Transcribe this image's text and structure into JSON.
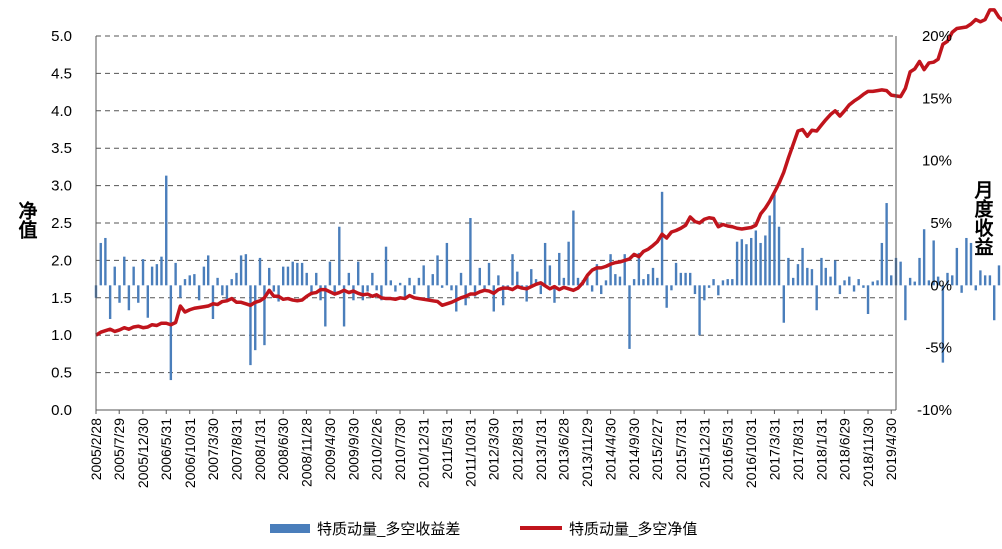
{
  "chart_data": {
    "type": "bar+line",
    "title": "",
    "ylabel_left": "净值",
    "ylabel_right": "月度收益",
    "ylim_left": [
      0.0,
      5.0
    ],
    "yticks_left": [
      "0.0",
      "0.5",
      "1.0",
      "1.5",
      "2.0",
      "2.5",
      "3.0",
      "3.5",
      "4.0",
      "4.5",
      "5.0"
    ],
    "ylim_right": [
      -10,
      20
    ],
    "yticks_right": [
      "-10%",
      "-5%",
      "0%",
      "5%",
      "10%",
      "15%",
      "20%"
    ],
    "xlim": [
      "2005/2/28",
      "2019/5/31"
    ],
    "x_tick_labels": [
      "2005/2/28",
      "2005/7/29",
      "2005/12/30",
      "2006/5/31",
      "2006/10/31",
      "2007/3/30",
      "2007/8/31",
      "2008/1/31",
      "2008/6/30",
      "2008/11/28",
      "2009/4/30",
      "2009/9/30",
      "2010/2/26",
      "2010/7/30",
      "2010/12/31",
      "2011/5/31",
      "2011/10/31",
      "2012/3/30",
      "2012/8/31",
      "2013/1/31",
      "2013/6/28",
      "2013/11/29",
      "2014/4/30",
      "2014/9/30",
      "2015/2/27",
      "2015/7/31",
      "2015/12/31",
      "2016/5/31",
      "2016/10/31",
      "2017/3/31",
      "2017/8/31",
      "2018/1/31",
      "2018/6/29",
      "2018/11/30",
      "2019/4/30"
    ],
    "grid": true,
    "legend_position": "bottom",
    "series": [
      {
        "name": "特质动量_多空收益差",
        "kind": "bar",
        "axis": "right",
        "color": "#4a7ebb",
        "values": [
          -1.0,
          3.4,
          3.8,
          -2.7,
          1.5,
          -1.4,
          2.3,
          -2.0,
          1.5,
          -1.4,
          2.1,
          -2.6,
          1.5,
          1.7,
          2.3,
          8.8,
          -7.6,
          1.8,
          -1.0,
          0.5,
          0.8,
          0.9,
          -1.2,
          1.5,
          2.4,
          -2.7,
          0.6,
          -0.8,
          -1.2,
          0.5,
          1.0,
          2.4,
          2.5,
          -6.4,
          -5.2,
          2.2,
          -4.8,
          1.4,
          -0.5,
          -1.3,
          1.5,
          1.5,
          1.9,
          1.8,
          1.8,
          1.0,
          -0.8,
          1.0,
          -1.2,
          -3.3,
          1.9,
          -0.7,
          4.7,
          -3.3,
          1.0,
          -1.2,
          1.9,
          -1.2,
          -0.5,
          1.0,
          -0.4,
          -1.2,
          3.1,
          0.4,
          -0.5,
          0.2,
          -1.1,
          0.6,
          -0.7,
          0.6,
          1.6,
          -1.2,
          0.9,
          2.4,
          -0.2,
          3.4,
          -0.4,
          -2.1,
          1.0,
          -1.6,
          5.4,
          -0.9,
          1.4,
          -0.5,
          1.8,
          -2.1,
          0.8,
          -1.6,
          -0.2,
          2.5,
          1.1,
          -0.3,
          -1.3,
          1.3,
          0.5,
          -0.7,
          3.4,
          1.6,
          -1.4,
          2.6,
          0.6,
          3.5,
          6.0,
          0.6,
          0.4,
          0.8,
          -0.5,
          1.7,
          -0.7,
          0.4,
          2.5,
          0.9,
          0.7,
          2.5,
          -5.1,
          0.5,
          2.6,
          0.5,
          0.9,
          1.4,
          0.6,
          7.5,
          -1.8,
          -0.4,
          1.8,
          1.0,
          1.0,
          1.0,
          -0.7,
          -4.0,
          -1.2,
          -0.2,
          0.5,
          -0.8,
          0.4,
          0.5,
          0.5,
          3.5,
          3.7,
          3.3,
          3.8,
          4.4,
          3.4,
          4.0,
          5.6,
          7.3,
          4.7,
          -3.0,
          2.2,
          0.6,
          1.7,
          3.0,
          1.4,
          1.3,
          -2.0,
          2.2,
          1.4,
          0.7,
          2.0,
          -0.7,
          0.4,
          0.7,
          -0.5,
          0.5,
          -0.2,
          -2.3,
          0.3,
          0.4,
          3.4,
          6.6,
          0.8,
          2.2,
          1.9,
          -2.8,
          0.6,
          0.3,
          2.2,
          4.5,
          0.4,
          3.6,
          0.7,
          -6.2,
          1.0,
          0.8,
          3.0,
          -0.6,
          3.8,
          3.4,
          -0.4,
          1.2,
          0.8,
          0.8,
          -2.8,
          1.6,
          1.1,
          -7.1,
          1.3,
          1.2
        ]
      },
      {
        "name": "特质动量_多空净值",
        "kind": "line",
        "axis": "left",
        "color": "#c0141c",
        "values": [
          1.0,
          1.04,
          1.06,
          1.08,
          1.05,
          1.07,
          1.1,
          1.08,
          1.11,
          1.12,
          1.1,
          1.11,
          1.14,
          1.13,
          1.16,
          1.16,
          1.14,
          1.17,
          1.39,
          1.31,
          1.34,
          1.36,
          1.37,
          1.38,
          1.39,
          1.42,
          1.41,
          1.45,
          1.46,
          1.49,
          1.44,
          1.44,
          1.42,
          1.4,
          1.44,
          1.46,
          1.5,
          1.6,
          1.52,
          1.52,
          1.48,
          1.49,
          1.47,
          1.46,
          1.47,
          1.52,
          1.56,
          1.57,
          1.61,
          1.61,
          1.58,
          1.55,
          1.57,
          1.6,
          1.57,
          1.59,
          1.56,
          1.54,
          1.55,
          1.52,
          1.54,
          1.5,
          1.49,
          1.49,
          1.48,
          1.5,
          1.49,
          1.53,
          1.5,
          1.49,
          1.48,
          1.47,
          1.46,
          1.45,
          1.4,
          1.42,
          1.44,
          1.47,
          1.5,
          1.52,
          1.55,
          1.55,
          1.58,
          1.6,
          1.59,
          1.56,
          1.61,
          1.63,
          1.63,
          1.61,
          1.65,
          1.63,
          1.62,
          1.65,
          1.68,
          1.7,
          1.66,
          1.62,
          1.65,
          1.61,
          1.64,
          1.62,
          1.6,
          1.63,
          1.7,
          1.8,
          1.87,
          1.9,
          1.9,
          1.92,
          1.95,
          1.97,
          1.98,
          2.0,
          2.02,
          2.08,
          2.05,
          2.12,
          2.15,
          2.2,
          2.25,
          2.35,
          2.3,
          2.38,
          2.4,
          2.43,
          2.47,
          2.58,
          2.52,
          2.5,
          2.55,
          2.57,
          2.56,
          2.45,
          2.48,
          2.46,
          2.45,
          2.43,
          2.42,
          2.43,
          2.44,
          2.47,
          2.62,
          2.7,
          2.79,
          2.91,
          3.03,
          3.18,
          3.37,
          3.55,
          3.73,
          3.75,
          3.66,
          3.74,
          3.73,
          3.81,
          3.88,
          3.95,
          4.0,
          3.93,
          4.0,
          4.08,
          4.13,
          4.17,
          4.22,
          4.26,
          4.26,
          4.27,
          4.28,
          4.27,
          4.21,
          4.2,
          4.19,
          4.3,
          4.52,
          4.56,
          4.66,
          4.55,
          4.64,
          4.65,
          4.69,
          4.89,
          4.93,
          5.05,
          5.1,
          5.11,
          5.12,
          5.16,
          5.22,
          5.19,
          5.22,
          5.35,
          5.35,
          5.25,
          5.2,
          5.5,
          4.8,
          4.87,
          4.9
        ]
      }
    ]
  }
}
